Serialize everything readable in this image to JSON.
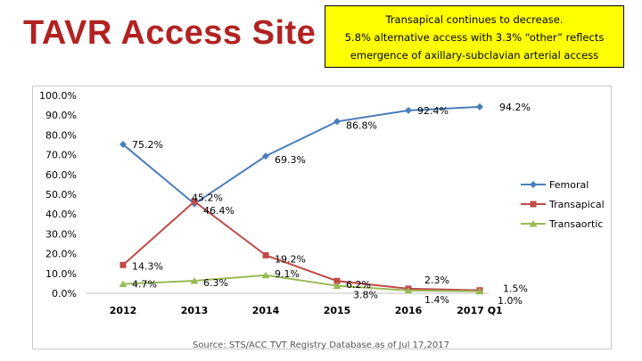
{
  "title": "TAVR Access Site",
  "callout": {
    "lines": [
      "Transapical continues to decrease.",
      "5.8% alternative access with 3.3% “other” reflects",
      "emergence of axillary-subclavian arterial access"
    ],
    "background": "#ffff00"
  },
  "source": "Source:  STS/ACC TVT Registry Database.as of  Jul 17,2017",
  "chart_data": {
    "type": "line",
    "title": "",
    "xlabel": "",
    "ylabel": "",
    "categories": [
      "2012",
      "2013",
      "2014",
      "2015",
      "2016",
      "2017 Q1"
    ],
    "ylim": [
      0,
      100
    ],
    "yticks": [
      "0.0%",
      "10.0%",
      "20.0%",
      "30.0%",
      "40.0%",
      "50.0%",
      "60.0%",
      "70.0%",
      "80.0%",
      "90.0%",
      "100.0%"
    ],
    "legend_position": "right",
    "series": [
      {
        "name": "Femoral",
        "color": "#4a7ebb",
        "marker": "diamond",
        "values": [
          75.2,
          45.2,
          69.3,
          86.8,
          92.4,
          94.2
        ],
        "labels": [
          "75.2%",
          "45.2%",
          "69.3%",
          "86.8%",
          "92.4%",
          "94.2%"
        ]
      },
      {
        "name": "Transapical",
        "color": "#be4b48",
        "marker": "square",
        "values": [
          14.3,
          46.4,
          19.2,
          6.2,
          2.3,
          1.5
        ],
        "labels": [
          "14.3%",
          "46.4%",
          "19.2%",
          "6.2%",
          "2.3%",
          "1.5%"
        ]
      },
      {
        "name": "Transaortic",
        "color": "#98b954",
        "marker": "triangle",
        "values": [
          4.7,
          6.3,
          9.1,
          3.8,
          1.4,
          1.0
        ],
        "labels": [
          "4.7%",
          "6.3%",
          "9.1%",
          "3.8%",
          "1.4%",
          "1.0%"
        ]
      }
    ]
  }
}
